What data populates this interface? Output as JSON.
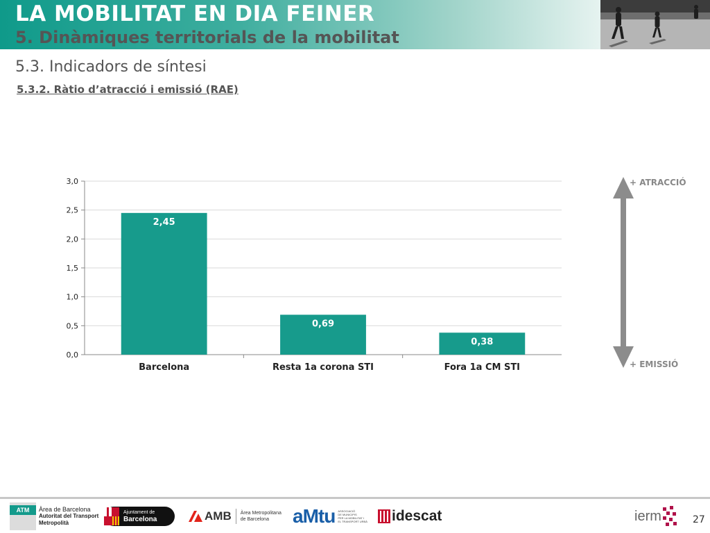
{
  "header": {
    "title": "LA MOBILITAT EN DIA FEINER",
    "subtitle": "5. Dinàmiques territorials de la mobilitat"
  },
  "section": {
    "title": "5.3. Indicadors de síntesi",
    "subtitle": "5.3.2. Ràtio d’atracció i emissió (RAE)"
  },
  "chart_data": {
    "type": "bar",
    "categories": [
      "Barcelona",
      "Resta 1a corona STI",
      "Fora 1a CM STI"
    ],
    "values": [
      2.45,
      0.69,
      0.38
    ],
    "value_labels": [
      "2,45",
      "0,69",
      "0,38"
    ],
    "yticks": [
      "0,0",
      "0,5",
      "1,0",
      "1,5",
      "2,0",
      "2,5",
      "3,0"
    ],
    "ylim": [
      0,
      3
    ],
    "title": "",
    "xlabel": "",
    "ylabel": "",
    "grid": true,
    "bar_color": "#179b8c",
    "grid_color": "#d9d9d9"
  },
  "scale": {
    "top_label": "+ ATRACCIÓ",
    "bottom_label": "+ EMISSIÓ",
    "arrow_color": "#8c8c8c"
  },
  "footer": {
    "page_number": "27",
    "logos": {
      "atm": {
        "badge": "ATM",
        "line1": "Àrea de Barcelona",
        "line2": "Autoritat del Transport",
        "line3": "Metropolità"
      },
      "ajuntament": {
        "line1": "Ajuntament de",
        "line2": "Barcelona"
      },
      "amb": {
        "name": "AMB",
        "line1": "Àrea Metropolitana",
        "line2": "de Barcelona"
      },
      "amtu": {
        "name": "aMtu",
        "line1": "ASSOCIACIÓ",
        "line2": "DE MUNICIPIS",
        "line3": "PER LA MOBILITAT I",
        "line4": "EL TRANSPORT URBÀ"
      },
      "idescat": {
        "name": "idescat"
      },
      "iermb": {
        "name": "ierm"
      }
    }
  }
}
